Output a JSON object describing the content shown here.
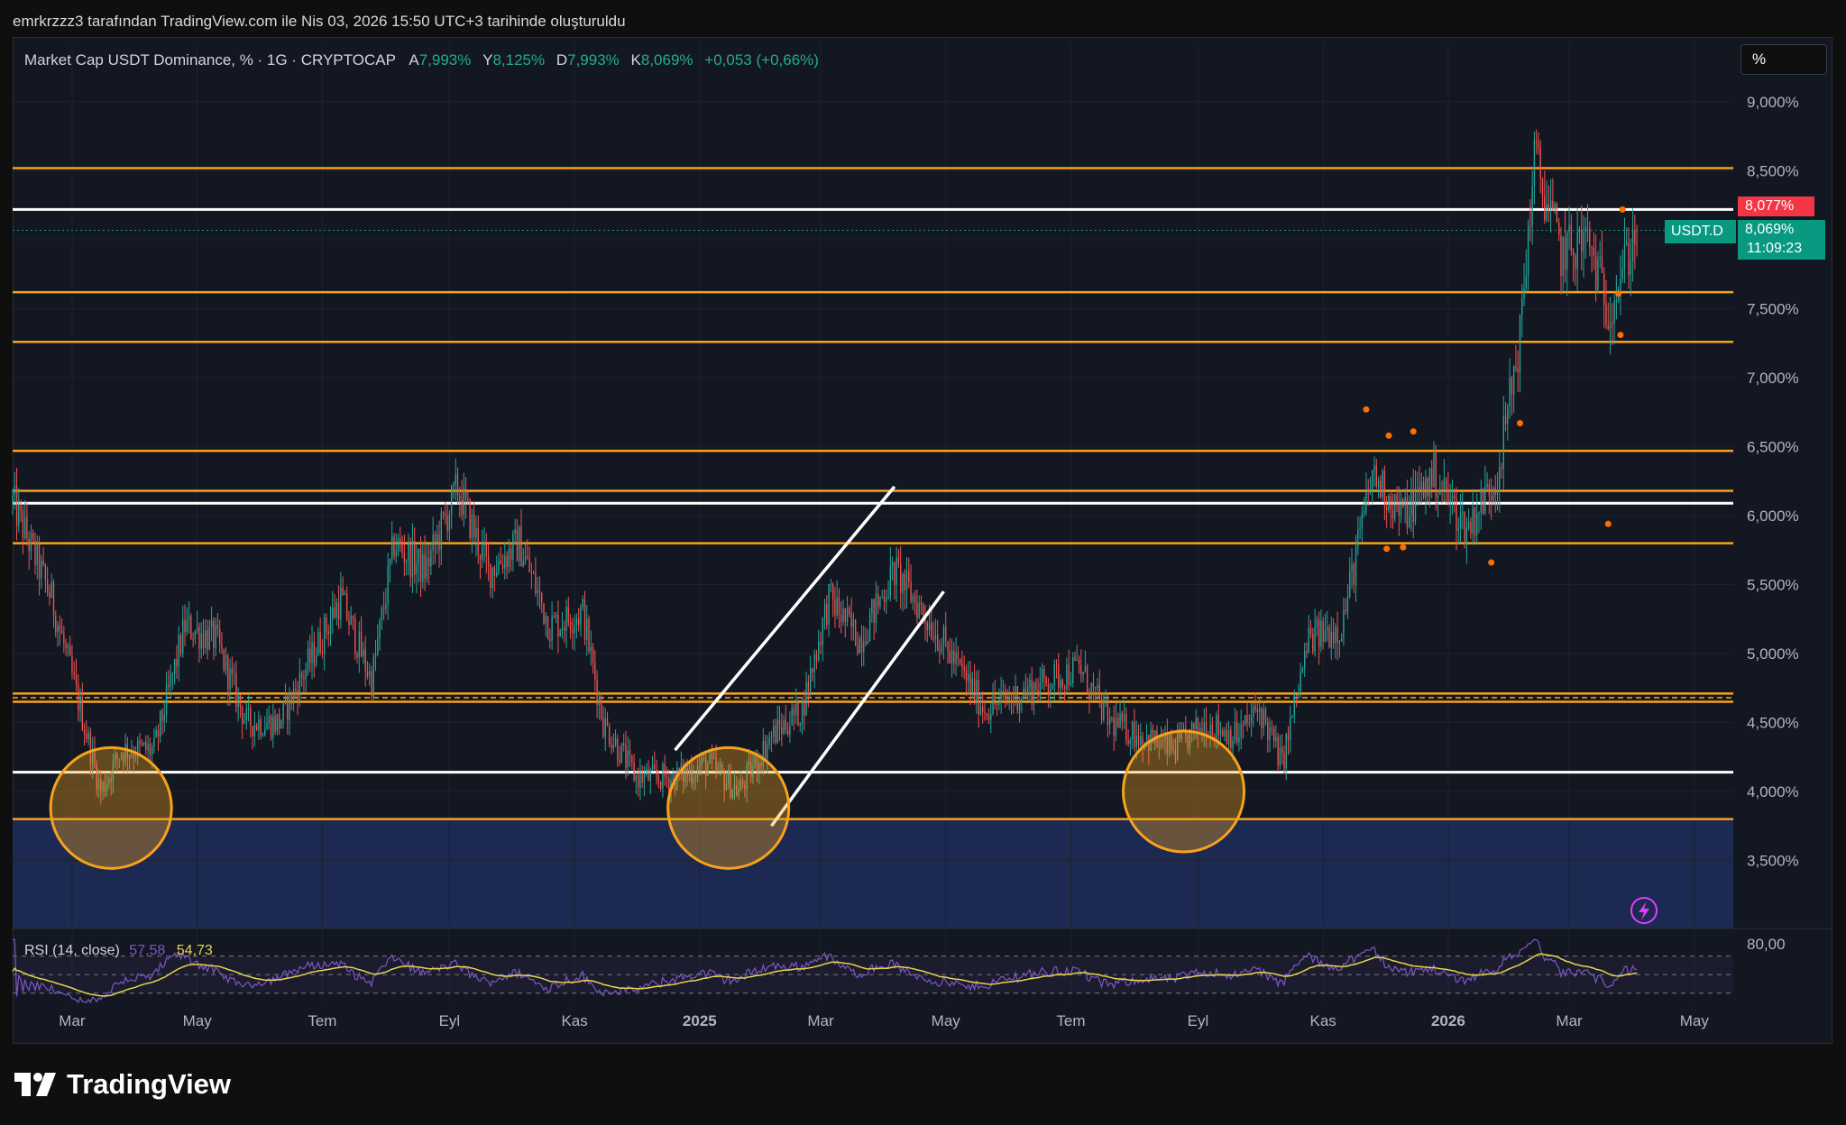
{
  "header_note": "emrkrzzz3 tarafından TradingView.com ile Nis 03, 2026 15:50 UTC+3 tarihinde oluşturuldu",
  "legend": {
    "title": "Market Cap USDT Dominance, % · 1G · CRYPTOCAP",
    "a_label": "A",
    "a_value": "7,993%",
    "y_label": "Y",
    "y_value": "8,125%",
    "d_label": "D",
    "d_value": "7,993%",
    "k_label": "K",
    "k_value": "8,069%",
    "change": "+0,053 (+0,66%)"
  },
  "scale_button": "%",
  "price_tags": {
    "high_tag": "8,077%",
    "symbol": "USDT.D",
    "last": "8,069%",
    "countdown": "11:09:23"
  },
  "rsi": {
    "label": "RSI (14, close)",
    "value": "57,58",
    "ma_value": "54,73",
    "axis_label": "80,00",
    "upper": 70,
    "lower": 30
  },
  "brand": "TradingView",
  "colors": {
    "background": "#131722",
    "up": "#26a69a",
    "down": "#ef5350",
    "orange_level": "#f7a21b",
    "white_level": "#ffffff",
    "zone": "#1f2d5c",
    "rsi_line": "#7e57c2",
    "rsi_ma": "#e8d44d",
    "last_price": "#089981",
    "high_price": "#f23645"
  },
  "chart_data": {
    "type": "candlestick",
    "title": "Market Cap USDT Dominance, % · 1G · CRYPTOCAP",
    "y_unit": "%",
    "ylim": [
      3.0,
      9.2
    ],
    "y_ticks": [
      "9,000%",
      "8,500%",
      "8,000%",
      "7,500%",
      "7,000%",
      "6,500%",
      "6,000%",
      "5,500%",
      "5,000%",
      "4,500%",
      "4,000%",
      "3,500%"
    ],
    "y_tick_values": [
      9.0,
      8.5,
      8.0,
      7.5,
      7.0,
      6.5,
      6.0,
      5.5,
      5.0,
      4.5,
      4.0,
      3.5
    ],
    "x_range": [
      "2024-02-01",
      "2026-05-20"
    ],
    "x_ticks": [
      {
        "label": "Mar",
        "date": "2024-03-01",
        "bold": false
      },
      {
        "label": "May",
        "date": "2024-05-01",
        "bold": false
      },
      {
        "label": "Tem",
        "date": "2024-07-01",
        "bold": false
      },
      {
        "label": "Eyl",
        "date": "2024-09-01",
        "bold": false
      },
      {
        "label": "Kas",
        "date": "2024-11-01",
        "bold": false
      },
      {
        "label": "2025",
        "date": "2025-01-01",
        "bold": true
      },
      {
        "label": "Mar",
        "date": "2025-03-01",
        "bold": false
      },
      {
        "label": "May",
        "date": "2025-05-01",
        "bold": false
      },
      {
        "label": "Tem",
        "date": "2025-07-01",
        "bold": false
      },
      {
        "label": "Eyl",
        "date": "2025-09-01",
        "bold": false
      },
      {
        "label": "Kas",
        "date": "2025-11-01",
        "bold": false
      },
      {
        "label": "2026",
        "date": "2026-01-01",
        "bold": true
      },
      {
        "label": "Mar",
        "date": "2026-03-01",
        "bold": false
      },
      {
        "label": "May",
        "date": "2026-05-01",
        "bold": false
      }
    ],
    "price_path": [
      [
        "2024-02-01",
        6.1
      ],
      [
        "2024-02-20",
        5.4
      ],
      [
        "2024-03-05",
        4.6
      ],
      [
        "2024-03-15",
        4.0
      ],
      [
        "2024-03-25",
        4.3
      ],
      [
        "2024-04-10",
        4.3
      ],
      [
        "2024-04-25",
        5.2
      ],
      [
        "2024-05-10",
        5.1
      ],
      [
        "2024-05-25",
        4.5
      ],
      [
        "2024-06-10",
        4.5
      ],
      [
        "2024-06-25",
        4.95
      ],
      [
        "2024-07-10",
        5.4
      ],
      [
        "2024-07-25",
        4.8
      ],
      [
        "2024-08-05",
        5.8
      ],
      [
        "2024-08-20",
        5.6
      ],
      [
        "2024-09-05",
        6.2
      ],
      [
        "2024-09-20",
        5.6
      ],
      [
        "2024-10-05",
        5.8
      ],
      [
        "2024-10-20",
        5.2
      ],
      [
        "2024-11-05",
        5.3
      ],
      [
        "2024-11-15",
        4.5
      ],
      [
        "2024-12-01",
        4.1
      ],
      [
        "2024-12-20",
        4.1
      ],
      [
        "2025-01-05",
        4.2
      ],
      [
        "2025-01-20",
        4.0
      ],
      [
        "2025-02-05",
        4.4
      ],
      [
        "2025-02-20",
        4.6
      ],
      [
        "2025-03-05",
        5.4
      ],
      [
        "2025-03-20",
        5.1
      ],
      [
        "2025-04-06",
        5.6
      ],
      [
        "2025-04-20",
        5.3
      ],
      [
        "2025-05-05",
        4.95
      ],
      [
        "2025-05-20",
        4.6
      ],
      [
        "2025-06-05",
        4.7
      ],
      [
        "2025-06-20",
        4.8
      ],
      [
        "2025-07-05",
        4.9
      ],
      [
        "2025-07-20",
        4.5
      ],
      [
        "2025-08-05",
        4.4
      ],
      [
        "2025-08-20",
        4.3
      ],
      [
        "2025-09-05",
        4.5
      ],
      [
        "2025-09-20",
        4.4
      ],
      [
        "2025-10-01",
        4.6
      ],
      [
        "2025-10-12",
        4.2
      ],
      [
        "2025-10-25",
        5.1
      ],
      [
        "2025-11-10",
        5.2
      ],
      [
        "2025-11-25",
        6.3
      ],
      [
        "2025-12-10",
        6.0
      ],
      [
        "2025-12-25",
        6.3
      ],
      [
        "2026-01-10",
        5.9
      ],
      [
        "2026-01-25",
        6.3
      ],
      [
        "2026-02-05",
        7.3
      ],
      [
        "2026-02-12",
        8.6
      ],
      [
        "2026-02-25",
        7.9
      ],
      [
        "2026-03-10",
        8.0
      ],
      [
        "2026-03-20",
        7.5
      ],
      [
        "2026-04-03",
        8.069
      ]
    ],
    "horizontal_levels": [
      {
        "value": 8.52,
        "color": "orange"
      },
      {
        "value": 8.22,
        "color": "white"
      },
      {
        "value": 7.62,
        "color": "orange"
      },
      {
        "value": 7.26,
        "color": "orange"
      },
      {
        "value": 6.47,
        "color": "orange"
      },
      {
        "value": 6.18,
        "color": "orange"
      },
      {
        "value": 6.09,
        "color": "white"
      },
      {
        "value": 5.8,
        "color": "orange"
      },
      {
        "value": 4.71,
        "color": "orange"
      },
      {
        "value": 4.68,
        "color": "orange-dashed"
      },
      {
        "value": 4.65,
        "color": "orange"
      },
      {
        "value": 4.14,
        "color": "white"
      },
      {
        "value": 3.8,
        "color": "orange"
      }
    ],
    "zone": {
      "from": 3.0,
      "to": 3.8
    },
    "channel": [
      {
        "from": [
          "2024-12-20",
          4.3
        ],
        "to": [
          "2025-04-06",
          6.21
        ]
      },
      {
        "from": [
          "2025-02-05",
          3.75
        ],
        "to": [
          "2025-04-30",
          5.45
        ]
      }
    ],
    "circles": [
      {
        "date": "2024-03-20",
        "value": 3.88
      },
      {
        "date": "2025-01-15",
        "value": 3.88
      },
      {
        "date": "2025-08-25",
        "value": 4.0
      }
    ],
    "last_value": 8.069,
    "high_marker": 8.077,
    "rsi_series": {
      "name": "RSI (14, close)",
      "last": 57.58,
      "ma_last": 54.73
    }
  }
}
